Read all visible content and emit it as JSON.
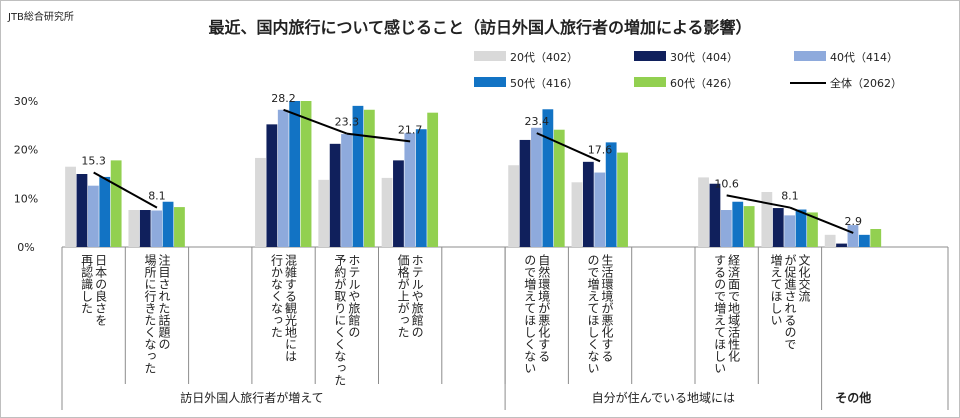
{
  "brand": "JTB総合研究所",
  "colors": {
    "20s": "#d9d9d9",
    "30s": "#10205c",
    "40s": "#8eaadc",
    "50s": "#1273c4",
    "60s": "#92d050",
    "total": "#000000"
  },
  "chart_data": {
    "type": "bar",
    "title": "最近、国内旅行について感じること（訪日外国人旅行者の増加による影響）",
    "ylim": [
      0,
      30
    ],
    "yticks": [
      "0%",
      "10%",
      "20%",
      "30%"
    ],
    "legend_position": "top-right",
    "categories": [
      [
        "日本の良さを",
        "再認識した"
      ],
      [
        "注目された話題の",
        "場所に行きたくなった"
      ],
      [
        "混雑する観光地には",
        "行かなくなった"
      ],
      [
        "ホテルや旅館の",
        "予約が取りにくくなった"
      ],
      [
        "ホテルや旅館の",
        "価格が上がった"
      ],
      [
        "自然環境が悪化する",
        "ので増えてほしくない"
      ],
      [
        "生活環境が悪化する",
        "ので増えてほしくない"
      ],
      [
        "経済面で地域活性化",
        "するので増えてほしい"
      ],
      [
        "文化交流",
        "が促進されるので",
        "増えてほしい"
      ],
      []
    ],
    "groups": [
      {
        "label": "訪日外国人旅行者が増えて",
        "from": 0,
        "to": 4
      },
      {
        "label": "自分が住んでいる地域には",
        "from": 5,
        "to": 8
      },
      {
        "label": "その他",
        "from": 9,
        "to": 9
      }
    ],
    "series": [
      {
        "name": "20代（402）",
        "key": "20s",
        "values": [
          16.5,
          7.6,
          18.3,
          13.8,
          14.2,
          16.8,
          13.3,
          14.3,
          11.3,
          2.5
        ]
      },
      {
        "name": "30代（404）",
        "key": "30s",
        "values": [
          15.0,
          7.6,
          25.2,
          21.2,
          17.8,
          22.0,
          17.5,
          13.0,
          8.0,
          0.7
        ]
      },
      {
        "name": "40代（414）",
        "key": "40s",
        "values": [
          12.6,
          7.5,
          28.2,
          23.2,
          23.4,
          24.5,
          15.3,
          7.6,
          6.5,
          4.5
        ]
      },
      {
        "name": "50代（416）",
        "key": "50s",
        "values": [
          14.4,
          9.3,
          30.0,
          29.0,
          24.2,
          28.3,
          21.5,
          9.3,
          7.7,
          2.5
        ]
      },
      {
        "name": "60代（426）",
        "key": "60s",
        "values": [
          17.8,
          8.2,
          30.0,
          28.2,
          27.6,
          24.1,
          19.4,
          8.4,
          7.1,
          3.7
        ]
      }
    ],
    "total": {
      "name": "全体（2062）",
      "values": [
        15.3,
        8.1,
        28.2,
        23.3,
        21.7,
        23.4,
        17.6,
        10.6,
        8.1,
        2.9
      ]
    },
    "other_label": "その他"
  }
}
